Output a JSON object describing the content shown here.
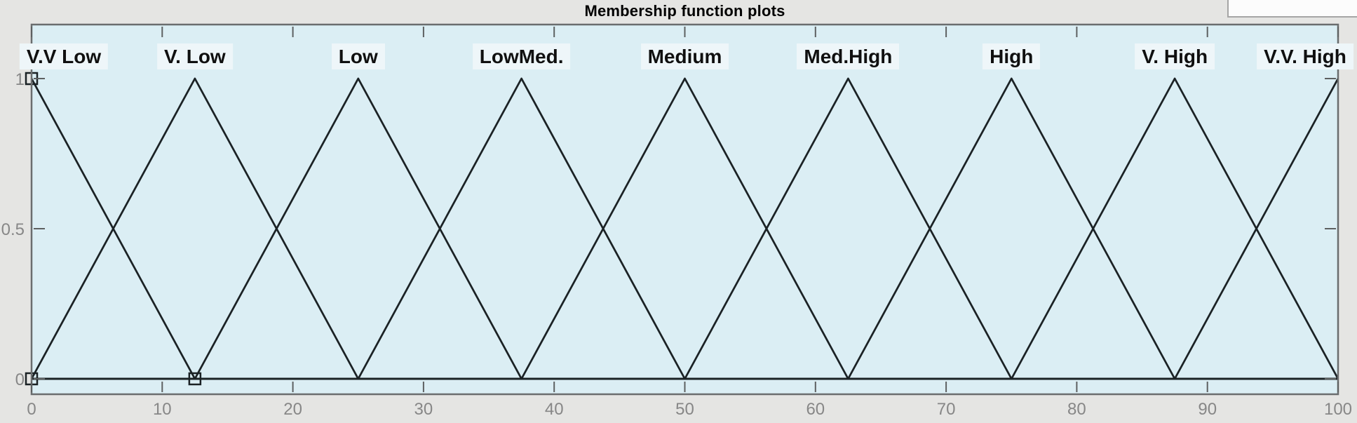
{
  "header": {
    "title": "Membership function plots"
  },
  "chart_data": {
    "type": "line",
    "title": "Membership function plots",
    "xlabel": "",
    "ylabel": "",
    "xlim": [
      0,
      100
    ],
    "ylim": [
      0,
      1
    ],
    "grid": false,
    "legend": "none (labels placed above each membership function peak)",
    "x_ticks": [
      {
        "value": 0,
        "label": "0"
      },
      {
        "value": 10,
        "label": "10"
      },
      {
        "value": 20,
        "label": "20"
      },
      {
        "value": 30,
        "label": "30"
      },
      {
        "value": 40,
        "label": "40"
      },
      {
        "value": 50,
        "label": "50"
      },
      {
        "value": 60,
        "label": "60"
      },
      {
        "value": 70,
        "label": "70"
      },
      {
        "value": 80,
        "label": "80"
      },
      {
        "value": 90,
        "label": "90"
      },
      {
        "value": 100,
        "label": "100"
      }
    ],
    "y_ticks": [
      {
        "value": 1,
        "label": "1"
      },
      {
        "value": 0.5,
        "label": "0.5"
      },
      {
        "value": 0,
        "label": "0"
      }
    ],
    "series": [
      {
        "name": "V.V Low",
        "points": [
          [
            0,
            1
          ],
          [
            12.5,
            0
          ]
        ]
      },
      {
        "name": "V. Low",
        "points": [
          [
            0,
            0
          ],
          [
            12.5,
            1
          ],
          [
            25,
            0
          ]
        ]
      },
      {
        "name": "Low",
        "points": [
          [
            12.5,
            0
          ],
          [
            25,
            1
          ],
          [
            37.5,
            0
          ]
        ]
      },
      {
        "name": "LowMed.",
        "points": [
          [
            25,
            0
          ],
          [
            37.5,
            1
          ],
          [
            50,
            0
          ]
        ]
      },
      {
        "name": "Medium",
        "points": [
          [
            37.5,
            0
          ],
          [
            50,
            1
          ],
          [
            62.5,
            0
          ]
        ]
      },
      {
        "name": "Med.High",
        "points": [
          [
            50,
            0
          ],
          [
            62.5,
            1
          ],
          [
            75,
            0
          ]
        ]
      },
      {
        "name": "High",
        "points": [
          [
            62.5,
            0
          ],
          [
            75,
            1
          ],
          [
            87.5,
            0
          ]
        ]
      },
      {
        "name": "V. High",
        "points": [
          [
            75,
            0
          ],
          [
            87.5,
            1
          ],
          [
            100,
            0
          ]
        ]
      },
      {
        "name": "V.V. High",
        "points": [
          [
            87.5,
            0
          ],
          [
            100,
            1
          ]
        ]
      }
    ],
    "zero_baseline": true,
    "selected_handles": [
      {
        "x": 0,
        "mu": 1
      },
      {
        "x": 0,
        "mu": 0
      },
      {
        "x": 12.5,
        "mu": 0
      }
    ],
    "colors": {
      "outer_bg": "#e5e5e3",
      "plot_bg": "#dbeef4",
      "mf_label_bg": "#eef6f9",
      "line": "#1b2225",
      "frame": "#6a6d6e",
      "tick": "#5d6061",
      "tick_label": "#878787",
      "title": "#000000"
    }
  }
}
